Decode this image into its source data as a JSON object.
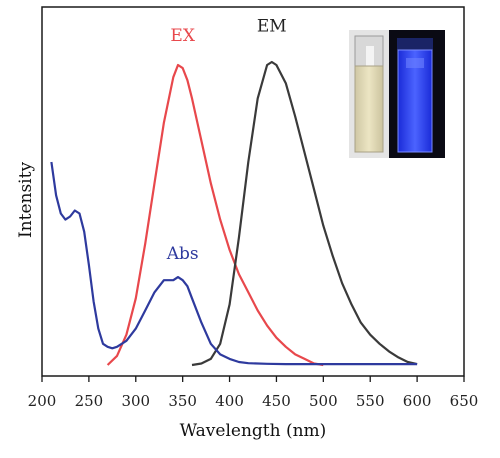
{
  "chart_data": {
    "type": "line",
    "title": "",
    "xlabel": "Wavelength (nm)",
    "ylabel": "Intensity",
    "xlim": [
      200,
      650
    ],
    "ylim": [
      0,
      1
    ],
    "x_ticks": [
      "200",
      "250",
      "300",
      "350",
      "400",
      "450",
      "500",
      "550",
      "600",
      "650"
    ],
    "grid": false,
    "legend": "none",
    "series": [
      {
        "name": "EX",
        "color": "#e8484c",
        "x": [
          270,
          280,
          290,
          300,
          310,
          320,
          330,
          340,
          345,
          350,
          355,
          360,
          370,
          380,
          390,
          400,
          410,
          420,
          430,
          440,
          450,
          460,
          470,
          480,
          490,
          500
        ],
        "y": [
          0.0,
          0.03,
          0.1,
          0.22,
          0.4,
          0.6,
          0.8,
          0.95,
          0.99,
          0.98,
          0.94,
          0.88,
          0.74,
          0.6,
          0.48,
          0.38,
          0.3,
          0.24,
          0.18,
          0.13,
          0.09,
          0.06,
          0.035,
          0.02,
          0.005,
          0.0
        ]
      },
      {
        "name": "EM",
        "color": "#3a3a3a",
        "x": [
          360,
          370,
          380,
          390,
          400,
          410,
          420,
          430,
          440,
          445,
          450,
          460,
          470,
          480,
          490,
          500,
          510,
          520,
          530,
          540,
          550,
          560,
          570,
          580,
          590,
          600
        ],
        "y": [
          0.0,
          0.005,
          0.02,
          0.07,
          0.2,
          0.42,
          0.67,
          0.88,
          0.99,
          1.0,
          0.99,
          0.93,
          0.82,
          0.7,
          0.58,
          0.46,
          0.36,
          0.27,
          0.2,
          0.14,
          0.1,
          0.07,
          0.045,
          0.025,
          0.01,
          0.003
        ]
      },
      {
        "name": "Abs",
        "color": "#2e3a9e",
        "x": [
          210,
          215,
          220,
          225,
          230,
          235,
          240,
          245,
          250,
          255,
          260,
          265,
          270,
          275,
          280,
          290,
          300,
          310,
          320,
          330,
          340,
          345,
          350,
          355,
          360,
          370,
          380,
          390,
          400,
          410,
          420,
          440,
          460,
          500,
          550,
          600
        ],
        "y": [
          0.67,
          0.56,
          0.5,
          0.48,
          0.49,
          0.51,
          0.5,
          0.44,
          0.33,
          0.21,
          0.12,
          0.07,
          0.06,
          0.055,
          0.06,
          0.08,
          0.12,
          0.18,
          0.24,
          0.28,
          0.28,
          0.29,
          0.28,
          0.26,
          0.22,
          0.14,
          0.07,
          0.035,
          0.02,
          0.01,
          0.006,
          0.004,
          0.003,
          0.003,
          0.003,
          0.003
        ]
      }
    ],
    "series_labels": [
      {
        "text": "EX",
        "x": 350,
        "y": 1.07,
        "color": "#e8484c"
      },
      {
        "text": "EM",
        "x": 445,
        "y": 1.1,
        "color": "#222222"
      },
      {
        "text": "Abs",
        "x": 350,
        "y": 0.35,
        "color": "#2e3a9e"
      }
    ]
  }
}
